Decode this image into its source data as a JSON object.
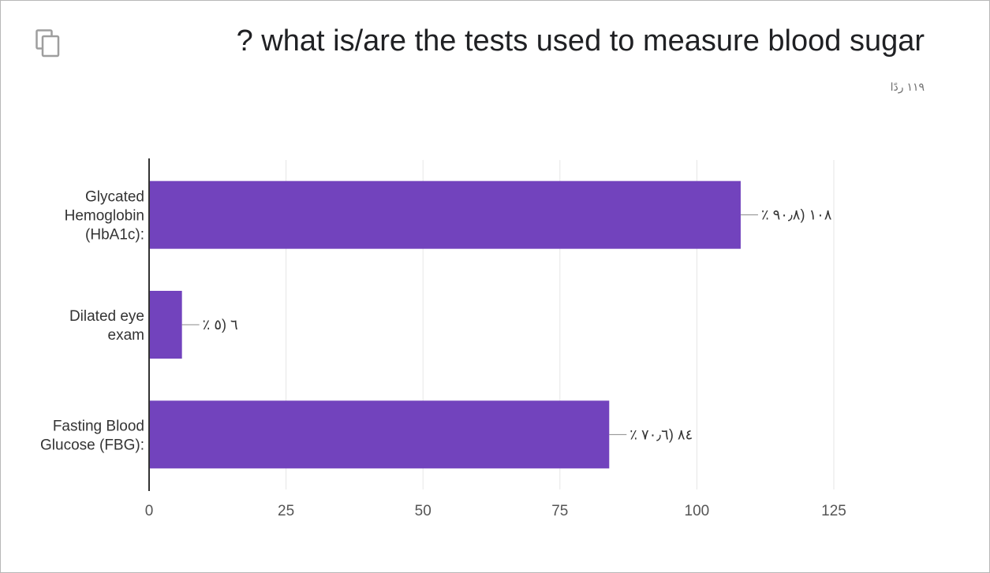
{
  "card": {
    "title": "? what is/are the tests used to measure blood sugar",
    "response_count": "١١٩ ردًا",
    "copy_icon": "copy-icon"
  },
  "colors": {
    "bar": "#7243bd",
    "grid": "#e6e6e6",
    "axis": "#333333"
  },
  "chart_data": {
    "type": "bar",
    "orientation": "horizontal",
    "title": "? what is/are the tests used to measure blood sugar",
    "categories": [
      [
        "Glycated",
        "Hemoglobin",
        "(HbA1c):"
      ],
      [
        "Dilated eye",
        "exam"
      ],
      [
        "Fasting Blood",
        "Glucose (FBG):"
      ]
    ],
    "values": [
      108,
      6,
      84
    ],
    "value_labels": [
      "١٠٨ (٩٠٫٨ ٪",
      "٦ (٥ ٪",
      "٨٤ (٧٠٫٦ ٪"
    ],
    "xlim": [
      0,
      125
    ],
    "xticks": [
      0,
      25,
      50,
      75,
      100,
      125
    ],
    "grid": true,
    "legend": "none"
  }
}
